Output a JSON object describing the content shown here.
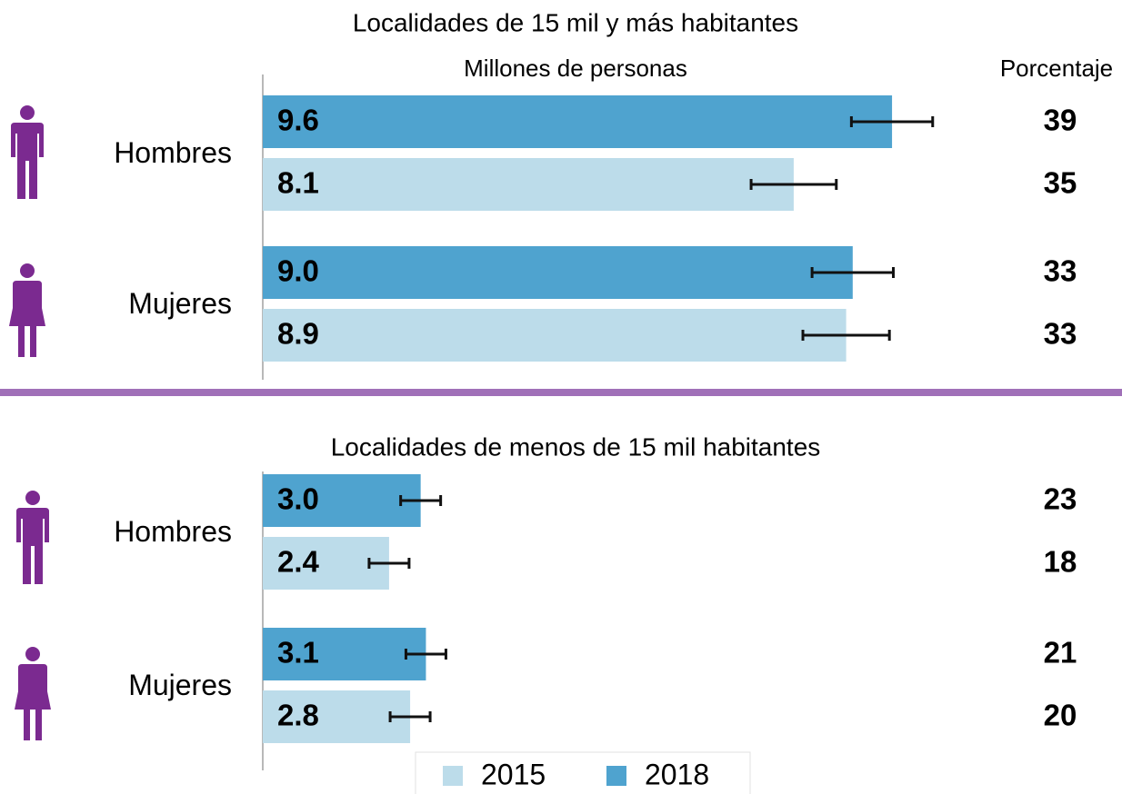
{
  "chart_data": [
    {
      "type": "bar",
      "title": "Localidades de 15 mil y más habitantes",
      "subtitle": "Millones de personas",
      "percent_header": "Porcentaje",
      "categories": [
        "Hombres",
        "Mujeres"
      ],
      "xlim": [
        0,
        11
      ],
      "series": [
        {
          "color": "#bcdcea",
          "values": [
            8.1,
            8.9
          ],
          "errors": [
            0.65,
            0.66
          ],
          "percentages": [
            35,
            33
          ],
          "percent_color": "#000000"
        },
        {
          "color": "#4fa3cf",
          "values": [
            9.6,
            9.0
          ],
          "value_labels": [
            "9.6",
            "9.0"
          ],
          "errors": [
            0.62,
            0.62
          ],
          "percentages": [
            39,
            33
          ],
          "percent_color": "#4fa3cf"
        }
      ]
    },
    {
      "type": "bar",
      "title": "Localidades de menos de 15 mil habitantes",
      "categories": [
        "Hombres",
        "Mujeres"
      ],
      "xlim": [
        0,
        13.7
      ],
      "series": [
        {
          "name": "2015",
          "color": "#bcdcea",
          "values": [
            2.4,
            2.8
          ],
          "errors": [
            0.38,
            0.38
          ],
          "percentages": [
            18,
            20
          ],
          "percent_color": "#000000"
        },
        {
          "name": "2018",
          "color": "#4fa3cf",
          "values": [
            3.0,
            3.1
          ],
          "value_labels": [
            "3.0",
            "3.1"
          ],
          "errors": [
            0.38,
            0.38
          ],
          "percentages": [
            23,
            21
          ],
          "percent_color": "#4fa3cf"
        }
      ]
    }
  ]
}
